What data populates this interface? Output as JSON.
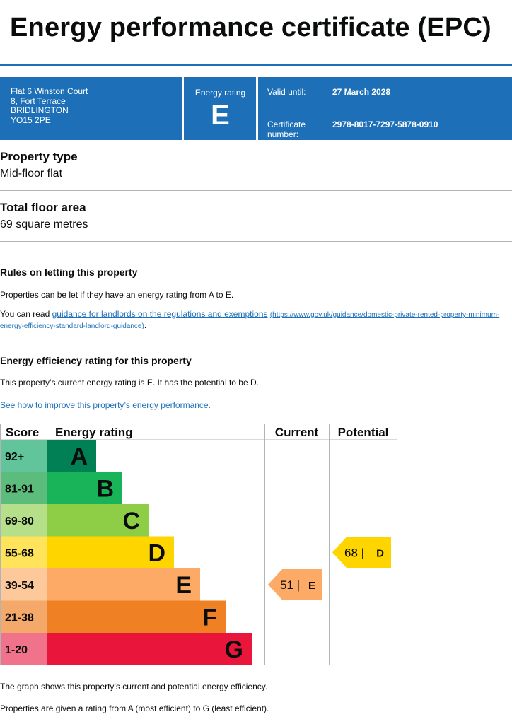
{
  "title": "Energy performance certificate (EPC)",
  "banner": {
    "address_lines": [
      "Flat 6 Winston Court",
      "8, Fort Terrace",
      "BRIDLINGTON",
      "YO15 2PE"
    ],
    "energy_rating_label": "Energy rating",
    "energy_rating_value": "E",
    "valid_until_label": "Valid until:",
    "valid_until_value": "27 March 2028",
    "certificate_label": "Certificate number:",
    "certificate_value": "2978-8017-7297-5878-0910"
  },
  "property_type": {
    "heading": "Property type",
    "value": "Mid-floor flat"
  },
  "floor_area": {
    "heading": "Total floor area",
    "value": "69 square metres"
  },
  "letting": {
    "heading": "Rules on letting this property",
    "text": "Properties can be let if they have an energy rating from A to E.",
    "read_prefix": "You can read ",
    "link_text": "guidance for landlords on the regulations and exemptions",
    "link_url": "(https://www.gov.uk/guidance/domestic-private-rented-property-minimum-energy-efficiency-standard-landlord-guidance)",
    "read_suffix": "."
  },
  "efficiency": {
    "heading": "Energy efficiency rating for this property",
    "text": "This property’s current energy rating is E. It has the potential to be D.",
    "improve_link": "See how to improve this property’s energy performance."
  },
  "chart_data": {
    "type": "table",
    "headers": {
      "score": "Score",
      "rating": "Energy rating",
      "current": "Current",
      "potential": "Potential"
    },
    "bands": [
      {
        "score": "92+",
        "letter": "A",
        "color": "#008054",
        "score_bg": "#62c49a"
      },
      {
        "score": "81-91",
        "letter": "B",
        "color": "#19b459",
        "score_bg": "#5cbc7c"
      },
      {
        "score": "69-80",
        "letter": "C",
        "color": "#8dce46",
        "score_bg": "#b5df88"
      },
      {
        "score": "55-68",
        "letter": "D",
        "color": "#ffd500",
        "score_bg": "#ffe35a"
      },
      {
        "score": "39-54",
        "letter": "E",
        "color": "#fcaa65",
        "score_bg": "#fdc89a"
      },
      {
        "score": "21-38",
        "letter": "F",
        "color": "#ef8023",
        "score_bg": "#f4a86a"
      },
      {
        "score": "1-20",
        "letter": "G",
        "color": "#e9153b",
        "score_bg": "#f1738b"
      }
    ],
    "current": {
      "value": 51,
      "letter": "E",
      "text": "51 |",
      "color": "#fcaa65"
    },
    "potential": {
      "value": 68,
      "letter": "D",
      "text": "68 |",
      "color": "#ffd500"
    }
  },
  "footer": {
    "line1": "The graph shows this property’s current and potential energy efficiency.",
    "line2": "Properties are given a rating from A (most efficient) to G (least efficient)."
  }
}
